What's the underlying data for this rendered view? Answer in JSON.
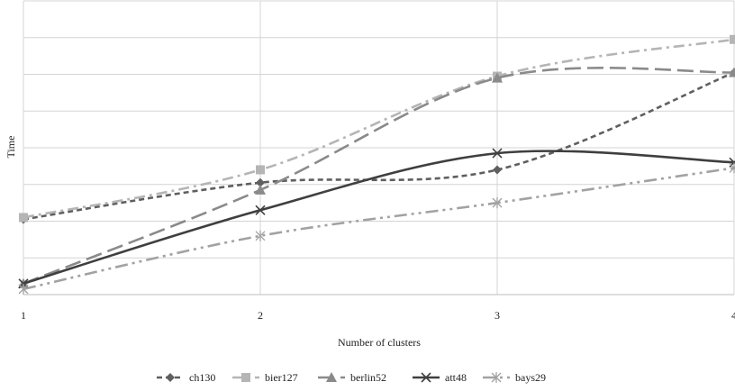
{
  "chart_data": {
    "type": "line",
    "title": "",
    "xlabel": "Number of clusters",
    "ylabel": "Time",
    "categories": [
      "1",
      "2",
      "3",
      "4"
    ],
    "x": [
      1,
      2,
      3,
      4
    ],
    "ylim": [
      0,
      8
    ],
    "grid": true,
    "smooth": true,
    "legend_position": "bottom",
    "series": [
      {
        "name": "ch130",
        "values": [
          2.05,
          3.05,
          3.4,
          6.05
        ],
        "color": "#5f5f5f",
        "dash": "short-dash",
        "marker": "diamond"
      },
      {
        "name": "bier127",
        "values": [
          2.1,
          3.4,
          5.95,
          6.95
        ],
        "color": "#b5b5b5",
        "dash": "dash-dot",
        "marker": "square"
      },
      {
        "name": "berlin52",
        "values": [
          0.3,
          2.85,
          5.9,
          6.05
        ],
        "color": "#8a8a8a",
        "dash": "long-dash",
        "marker": "triangle"
      },
      {
        "name": "att48",
        "values": [
          0.3,
          2.3,
          3.85,
          3.6
        ],
        "color": "#3f3f3f",
        "dash": "solid",
        "marker": "x"
      },
      {
        "name": "bays29",
        "values": [
          0.15,
          1.6,
          2.5,
          3.45
        ],
        "color": "#a2a2a2",
        "dash": "long-dash-dot-dot",
        "marker": "star"
      }
    ]
  }
}
